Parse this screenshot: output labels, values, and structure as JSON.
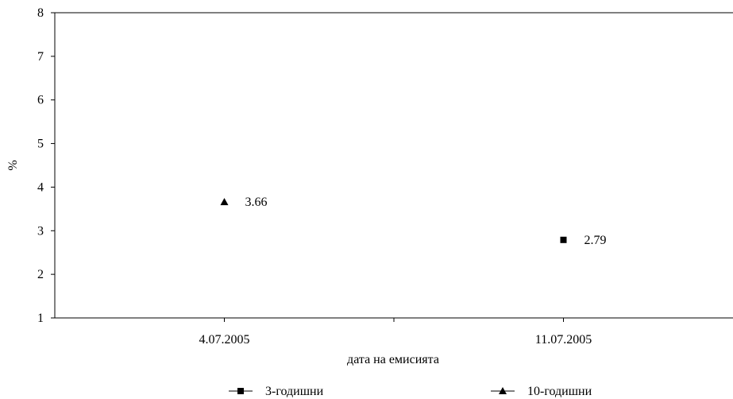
{
  "chart_data": {
    "type": "scatter",
    "title": "",
    "xlabel": "дата на емисията",
    "ylabel": "%",
    "categories": [
      "4.07.2005",
      "11.07.2005"
    ],
    "ylim": [
      1,
      8
    ],
    "yticks": [
      "1",
      "2",
      "3",
      "4",
      "5",
      "6",
      "7",
      "8"
    ],
    "grid": false,
    "legend_position": "bottom",
    "series": [
      {
        "name": "3-годишни",
        "marker": "square",
        "color": "#000000",
        "points": [
          {
            "x": "11.07.2005",
            "y": 2.79,
            "label": "2.79"
          }
        ]
      },
      {
        "name": "10-годишни",
        "marker": "triangle",
        "color": "#000000",
        "points": [
          {
            "x": "4.07.2005",
            "y": 3.66,
            "label": "3.66"
          }
        ]
      }
    ]
  }
}
